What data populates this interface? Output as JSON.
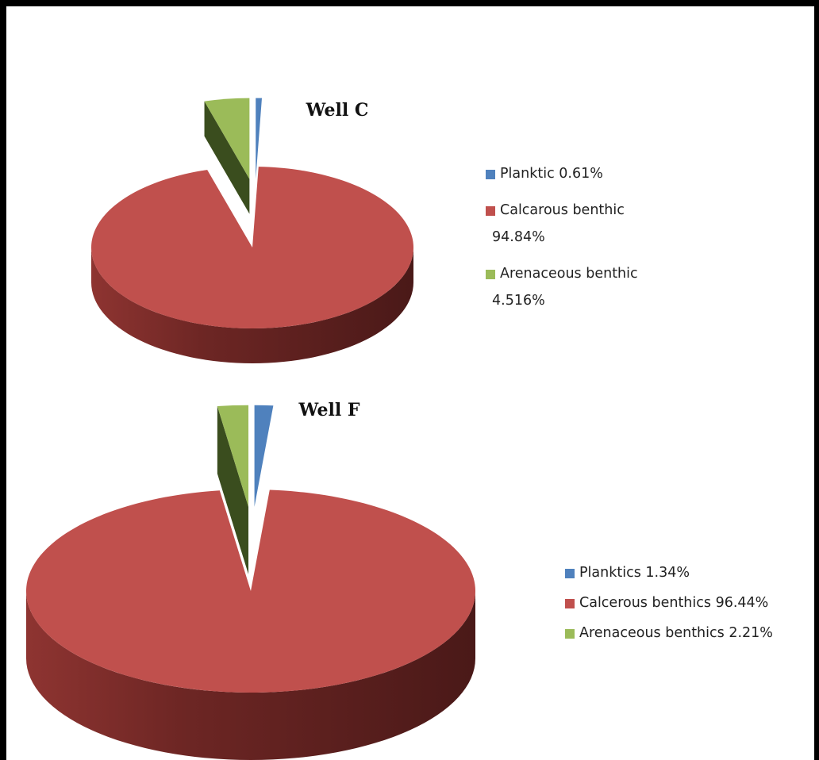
{
  "chart_data": [
    {
      "type": "pie",
      "title": "Well C",
      "series": [
        {
          "label_lines": [
            "Planktic 0.61%"
          ],
          "value": 0.61,
          "color": "#4f81bd",
          "side_color": "#1e3a5f"
        },
        {
          "label_lines": [
            "Calcarous benthic",
            "94.84%"
          ],
          "value": 94.84,
          "color": "#c0504d",
          "side_color": "#5a1e1d"
        },
        {
          "label_lines": [
            "Arenaceous benthic",
            "4.516%"
          ],
          "value": 4.516,
          "color": "#9bbb59",
          "side_color": "#3a4d1e"
        }
      ],
      "legend_position": "right"
    },
    {
      "type": "pie",
      "title": "Well F",
      "series": [
        {
          "label_lines": [
            "Planktics 1.34%"
          ],
          "value": 1.34,
          "color": "#4f81bd",
          "side_color": "#1e3a5f"
        },
        {
          "label_lines": [
            "Calcerous benthics 96.44%"
          ],
          "value": 96.44,
          "color": "#c0504d",
          "side_color": "#5a1e1d"
        },
        {
          "label_lines": [
            "Arenaceous benthics 2.21%"
          ],
          "value": 2.21,
          "color": "#9bbb59",
          "side_color": "#3a4d1e"
        }
      ],
      "legend_position": "right"
    }
  ]
}
